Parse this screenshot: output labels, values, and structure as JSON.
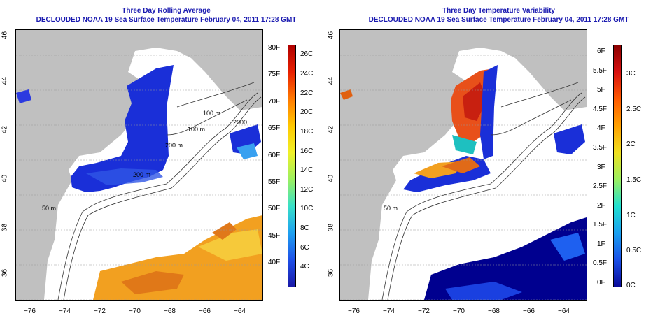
{
  "panels": [
    {
      "title_line1": "Three Day Rolling Average",
      "title_line2": "DECLOUDED NOAA 19 Sea Surface Temperature February 04, 2011 17:28 GMT",
      "colorbar_left": [
        "80F",
        "75F",
        "70F",
        "65F",
        "60F",
        "55F",
        "50F",
        "45F",
        "40F"
      ],
      "colorbar_right": [
        "26C",
        "24C",
        "22C",
        "20C",
        "18C",
        "16C",
        "14C",
        "12C",
        "10C",
        "8C",
        "6C",
        "4C"
      ]
    },
    {
      "title_line1": "Three Day Temperature Variability",
      "title_line2": "DECLOUDED NOAA 19 Sea Surface Temperature February 04, 2011 17:28 GMT",
      "colorbar_left": [
        "6F",
        "5.5F",
        "5F",
        "4.5F",
        "4F",
        "3.5F",
        "3F",
        "2.5F",
        "2F",
        "1.5F",
        "1F",
        "0.5F",
        "0F"
      ],
      "colorbar_right": [
        "3C",
        "2.5C",
        "2C",
        "1.5C",
        "1C",
        "0.5C",
        "0C"
      ]
    }
  ],
  "x_ticks": [
    "−76",
    "−74",
    "−72",
    "−70",
    "−68",
    "−66",
    "−64"
  ],
  "y_ticks": [
    "46",
    "44",
    "42",
    "40",
    "38",
    "36"
  ],
  "depth_labels": [
    "100 m",
    "100 m",
    "200 m",
    "50 m",
    "200 m",
    "50 m",
    "2000"
  ],
  "colors": {
    "land": "#c0c0c0",
    "title": "#1a1ab0",
    "deep_blue": "#1a2fd8",
    "navy": "#00008f",
    "warm": "#f2a020"
  }
}
